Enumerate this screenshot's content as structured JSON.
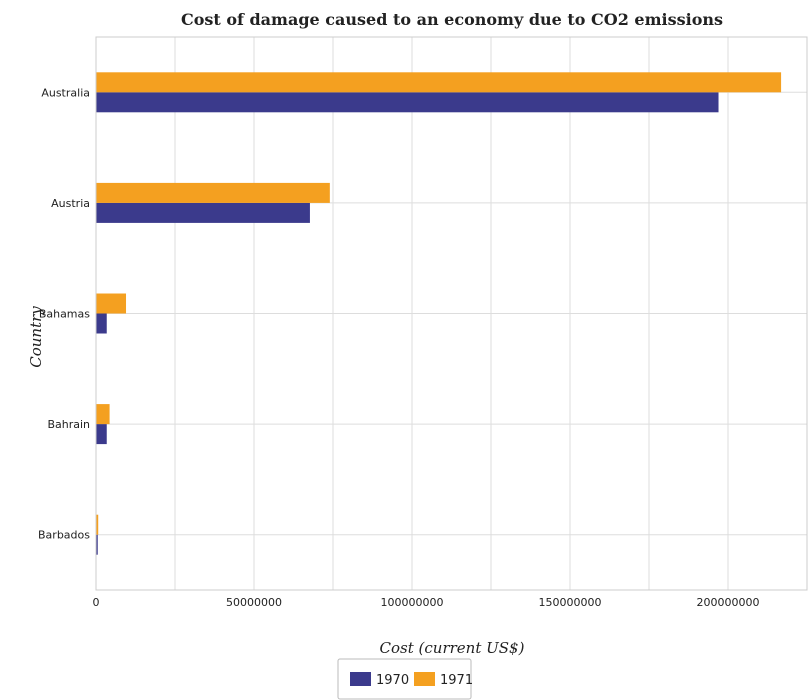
{
  "chart_data": {
    "type": "bar",
    "orientation": "horizontal",
    "title": "Cost of damage caused to an economy due to CO2 emissions",
    "xlabel": "Cost (current US$)",
    "ylabel": "Country",
    "categories": [
      "Australia",
      "Austria",
      "Bahamas",
      "Bahrain",
      "Barbados"
    ],
    "series": [
      {
        "name": "1970",
        "color": "#3b3a8c",
        "values": [
          197000000,
          67700000,
          3400000,
          3400000,
          550000
        ]
      },
      {
        "name": "1971",
        "color": "#f4a020",
        "values": [
          216800000,
          74000000,
          9500000,
          4300000,
          700000
        ]
      }
    ],
    "xlim": [
      0,
      225000000
    ],
    "xticks": [
      0,
      50000000,
      100000000,
      150000000,
      200000000
    ],
    "xtick_labels": [
      "0",
      "50000000",
      "100000000",
      "150000000",
      "200000000"
    ],
    "grid": true,
    "legend_position": "bottom-center"
  }
}
